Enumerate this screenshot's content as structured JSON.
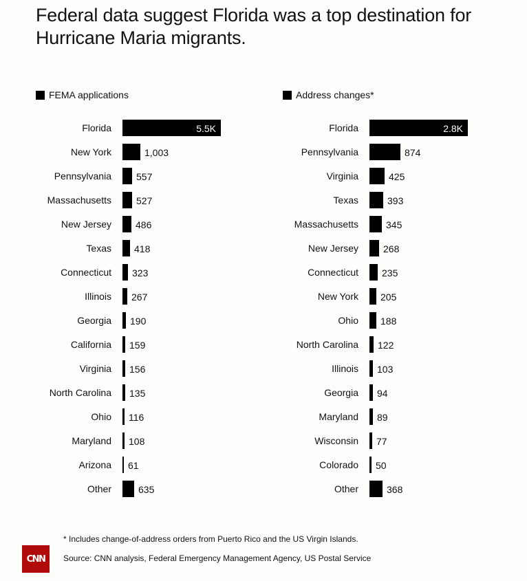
{
  "title": "Federal data suggest Florida was a top destination for Hurricane Maria migrants.",
  "footnote": "* Includes change-of-address orders from Puerto Rico and the US Virgin Islands.",
  "source": "Source: CNN analysis, Federal Emergency Management Agency, US Postal Service",
  "logo_text": "CNN",
  "colors": {
    "bar": "#000000",
    "logo": "#b10a0a",
    "background": "#fdfdfb"
  },
  "chart_data": [
    {
      "type": "bar",
      "orientation": "horizontal",
      "legend": "FEMA applications",
      "categories": [
        "Florida",
        "New York",
        "Pennsylvania",
        "Massachusetts",
        "New Jersey",
        "Texas",
        "Connecticut",
        "Illinois",
        "Georgia",
        "California",
        "Virginia",
        "North Carolina",
        "Ohio",
        "Maryland",
        "Arizona",
        "Other"
      ],
      "values": [
        5500,
        1003,
        557,
        527,
        486,
        418,
        323,
        267,
        190,
        159,
        156,
        135,
        116,
        108,
        61,
        635
      ],
      "value_labels": [
        "5.5K",
        "1,003",
        "557",
        "527",
        "486",
        "418",
        "323",
        "267",
        "190",
        "159",
        "156",
        "135",
        "116",
        "108",
        "61",
        "635"
      ]
    },
    {
      "type": "bar",
      "orientation": "horizontal",
      "legend": "Address changes*",
      "categories": [
        "Florida",
        "Pennsylvania",
        "Virginia",
        "Texas",
        "Massachusetts",
        "New Jersey",
        "Connecticut",
        "New York",
        "Ohio",
        "North Carolina",
        "Illinois",
        "Georgia",
        "Maryland",
        "Wisconsin",
        "Colorado",
        "Other"
      ],
      "values": [
        2800,
        874,
        425,
        393,
        345,
        268,
        235,
        205,
        188,
        122,
        103,
        94,
        89,
        77,
        50,
        368
      ],
      "value_labels": [
        "2.8K",
        "874",
        "425",
        "393",
        "345",
        "268",
        "235",
        "205",
        "188",
        "122",
        "103",
        "94",
        "89",
        "77",
        "50",
        "368"
      ]
    }
  ]
}
